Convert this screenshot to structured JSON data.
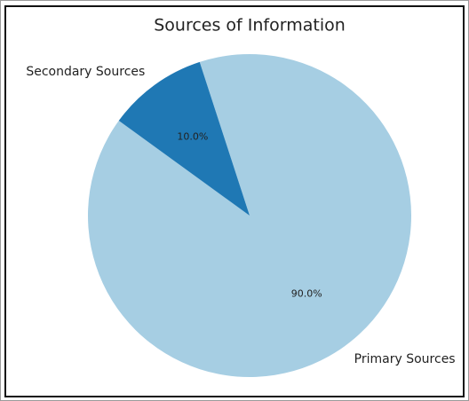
{
  "chart_data": {
    "type": "pie",
    "title": "Sources of Information",
    "categories": [
      "Primary Sources",
      "Secondary Sources"
    ],
    "values": [
      90,
      10
    ],
    "value_labels": [
      "90.0%",
      "10.0%"
    ],
    "colors": [
      "#a6cee3",
      "#1f78b4"
    ]
  }
}
